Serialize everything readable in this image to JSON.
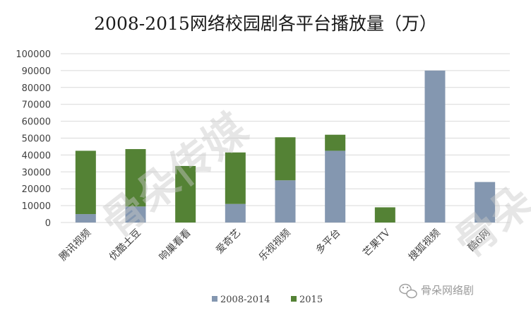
{
  "chart_data": {
    "type": "bar",
    "stacked": true,
    "title": "2008-2015网络校园剧各平台播放量（万）",
    "xlabel": "",
    "ylabel": "",
    "ylim": [
      0,
      100000
    ],
    "yticks": [
      0,
      10000,
      20000,
      30000,
      40000,
      50000,
      60000,
      70000,
      80000,
      90000,
      100000
    ],
    "grid": true,
    "legend_position": "bottom",
    "categories": [
      "腾讯视频",
      "优酷土豆",
      "响巢看看",
      "爱奇艺",
      "乐视视频",
      "多平台",
      "芒果TV",
      "搜狐视频",
      "酷6网"
    ],
    "series": [
      {
        "name": "2008-2014",
        "color": "#8497b0",
        "values": [
          5000,
          9500,
          0,
          11000,
          25000,
          42500,
          0,
          90000,
          24000
        ]
      },
      {
        "name": "2015",
        "color": "#548235",
        "values": [
          37500,
          34000,
          33500,
          30500,
          25500,
          9500,
          9000,
          0,
          0
        ]
      }
    ]
  },
  "watermark": {
    "text": "骨朵传媒",
    "side_text": "骨朵"
  },
  "brand": {
    "icon": "wechat-icon",
    "text": "骨朵网络剧"
  }
}
